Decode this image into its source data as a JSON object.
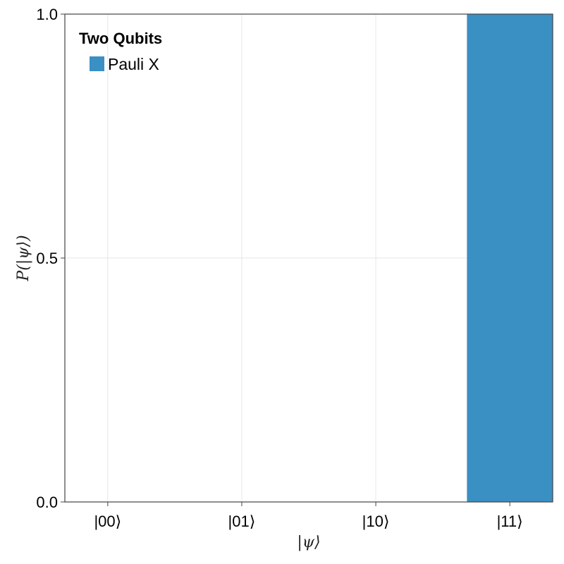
{
  "chart_data": {
    "type": "bar",
    "categories": [
      "|00⟩",
      "|01⟩",
      "|10⟩",
      "|11⟩"
    ],
    "series": [
      {
        "name": "Pauli X",
        "values": [
          0,
          0,
          0,
          1.0
        ]
      }
    ],
    "xlabel": "|ψ⟩",
    "ylabel": "P(|ψ⟩)",
    "ylim": [
      0,
      1.0
    ],
    "yticks": [
      "0.0",
      "0.5",
      "1.0"
    ],
    "grid": true,
    "legend": {
      "title": "Two Qubits",
      "position": "top-left"
    },
    "colors": {
      "bar": "#3a8fc3",
      "grid": "#e6e6e6",
      "frame": "#444444"
    }
  }
}
